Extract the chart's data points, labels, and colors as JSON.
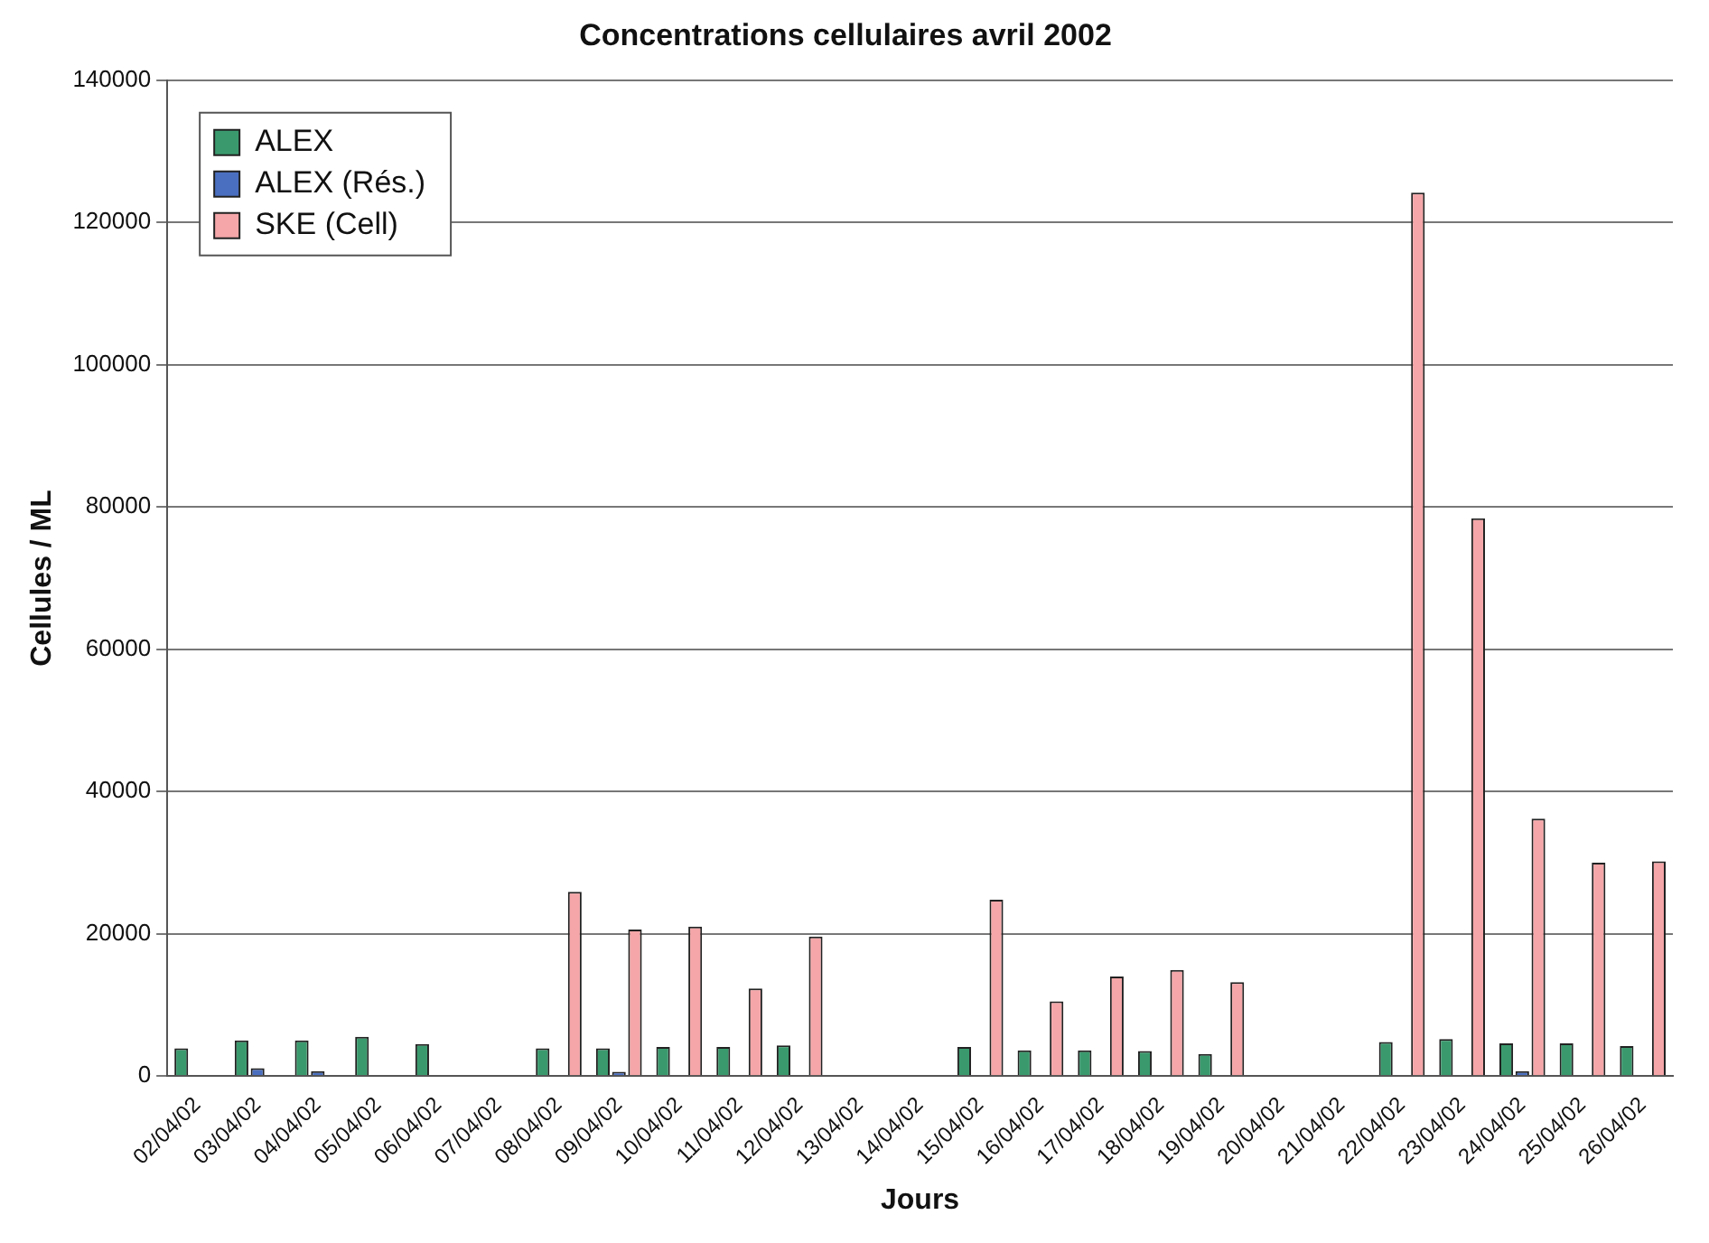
{
  "chart_data": {
    "type": "bar",
    "title": "Concentrations cellulaires avril 2002",
    "xlabel": "Jours",
    "ylabel": "Cellules / ML",
    "categories": [
      "02/04/02",
      "03/04/02",
      "04/04/02",
      "05/04/02",
      "06/04/02",
      "07/04/02",
      "08/04/02",
      "09/04/02",
      "10/04/02",
      "11/04/02",
      "12/04/02",
      "13/04/02",
      "14/04/02",
      "15/04/02",
      "16/04/02",
      "17/04/02",
      "18/04/02",
      "19/04/02",
      "20/04/02",
      "21/04/02",
      "22/04/02",
      "23/04/02",
      "24/04/02",
      "25/04/02",
      "26/04/02"
    ],
    "series": [
      {
        "name": "ALEX",
        "color": "#3a9a6e",
        "values": [
          3900,
          5000,
          5000,
          5500,
          4500,
          null,
          3900,
          3900,
          4100,
          4100,
          4300,
          null,
          null,
          4100,
          3600,
          3600,
          3500,
          3100,
          null,
          null,
          4800,
          5200,
          4600,
          4600,
          4200
        ]
      },
      {
        "name": "ALEX (Rés.)",
        "color": "#4a6fc0",
        "values": [
          null,
          1100,
          700,
          null,
          null,
          null,
          0,
          600,
          0,
          0,
          0,
          null,
          null,
          0,
          null,
          0,
          0,
          0,
          null,
          null,
          0,
          0,
          700,
          0,
          0
        ]
      },
      {
        "name": "SKE (Cell)",
        "color": "#f4a6a8",
        "values": [
          0,
          0,
          0,
          0,
          0,
          null,
          25900,
          20600,
          21000,
          12300,
          19600,
          null,
          null,
          24800,
          10500,
          14000,
          14900,
          13200,
          null,
          null,
          124200,
          78400,
          36200,
          30000,
          30200
        ]
      }
    ],
    "ylim": [
      0,
      140000
    ],
    "yticks": [
      0,
      20000,
      40000,
      60000,
      80000,
      100000,
      120000,
      140000
    ],
    "grid": "y",
    "legend": "top left"
  }
}
